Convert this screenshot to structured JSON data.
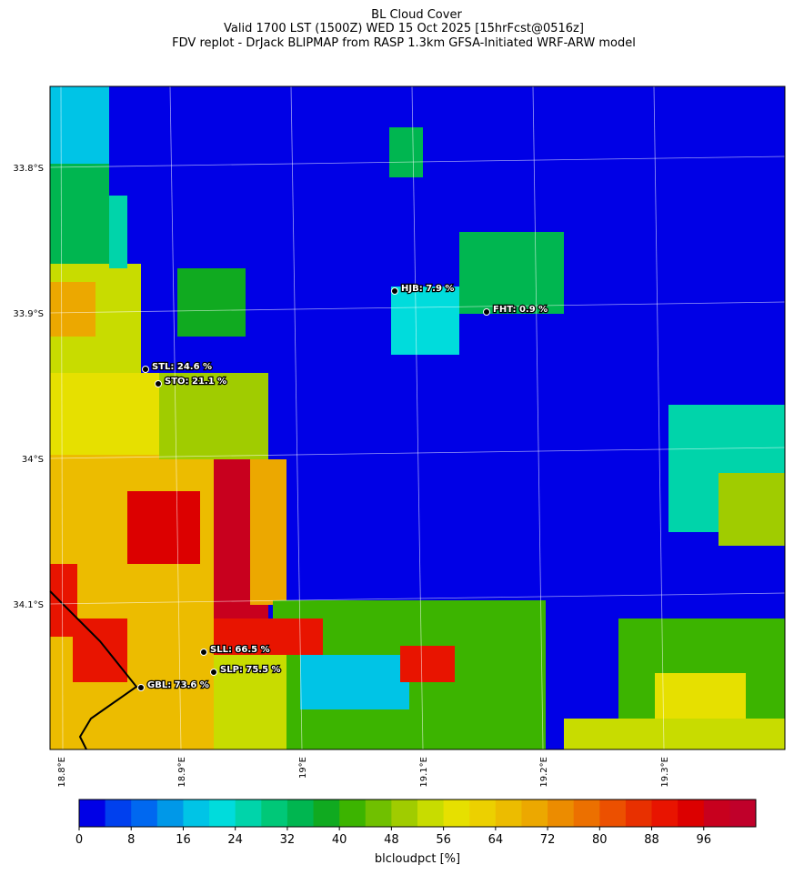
{
  "header": {
    "title": [
      "BL Cloud Cover",
      "Valid 1700 LST (1500Z) WED 15 Oct 2025 [15hrFcst@0516z]",
      "FDV replot - DrJack BLIPMAP from RASP 1.3km GFSA-Initiated WRF-ARW model"
    ]
  },
  "map": {
    "lat_labels": [
      "33.8°S",
      "33.9°S",
      "34°S",
      "34.1°S"
    ],
    "lon_labels": [
      "18.8°E",
      "18.9°E",
      "19°E",
      "19.1°E",
      "19.2°E",
      "19.3°E"
    ],
    "stations": [
      "HJB: 7.9 %",
      "FHT: 0.9 %",
      "STL: 24.6 %",
      "STO: 21.1 %",
      "SLL: 66.5 %",
      "SLP: 75.5 %",
      "GBL: 73.6 %"
    ]
  },
  "colorbar": {
    "label": "blcloudpct [%]",
    "lim": [
      0,
      104
    ],
    "ticks": [
      0,
      8,
      16,
      24,
      32,
      40,
      48,
      56,
      64,
      72,
      80,
      88,
      96
    ],
    "colors": [
      "#0000e6",
      "#0040ee",
      "#0068f0",
      "#0098e8",
      "#00c4e6",
      "#00dcdc",
      "#00d4aa",
      "#00c878",
      "#00b650",
      "#10aa20",
      "#3cb400",
      "#70c000",
      "#a0cc00",
      "#c8dc00",
      "#e6e000",
      "#ecd000",
      "#ecbc00",
      "#eca800",
      "#ec8c00",
      "#ec7000",
      "#ec5000",
      "#e83000",
      "#e81400",
      "#dc0000",
      "#c8001e",
      "#c0002a"
    ]
  }
}
